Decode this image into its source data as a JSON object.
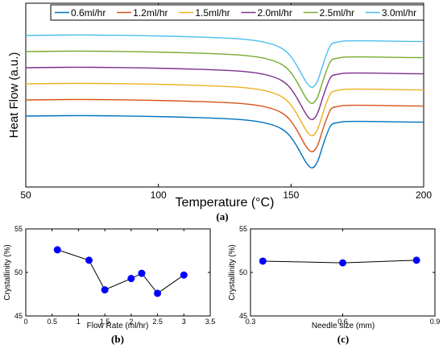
{
  "chart_data": [
    {
      "panel": "a",
      "type": "line",
      "caption": "(a)",
      "xlabel": "Temperature",
      "xlabel_unit": "(°C)",
      "ylabel": "Heat Flow (a.u.)",
      "xlim": [
        50,
        200
      ],
      "xticks": [
        50,
        100,
        150,
        200
      ],
      "yticks_shown": false,
      "grid": false,
      "legend": "top, horizontal",
      "series": [
        {
          "name": "0.6ml/hr",
          "color": "#0072BD",
          "offset": 0.0
        },
        {
          "name": "1.2ml/hr",
          "color": "#D95319",
          "offset": 1.0
        },
        {
          "name": "1.5ml/hr",
          "color": "#EDB120",
          "offset": 2.0
        },
        {
          "name": "2.0ml/hr",
          "color": "#7E2F8E",
          "offset": 3.0
        },
        {
          "name": "2.5ml/hr",
          "color": "#77AC30",
          "offset": 4.0
        },
        {
          "name": "3.0ml/hr",
          "color": "#4DBEEE",
          "offset": 5.0
        }
      ],
      "curve_shape": {
        "x": [
          50,
          60,
          70,
          80,
          90,
          100,
          110,
          120,
          130,
          135,
          140,
          145,
          148,
          150,
          152,
          154,
          156,
          158,
          160,
          162,
          164,
          165,
          166,
          168,
          170,
          180,
          190,
          200
        ],
        "y": [
          0.0,
          0.02,
          0.03,
          0.02,
          0.0,
          -0.03,
          -0.07,
          -0.12,
          -0.2,
          -0.28,
          -0.4,
          -0.65,
          -0.95,
          -1.3,
          -1.8,
          -2.4,
          -3.0,
          -3.3,
          -2.9,
          -1.8,
          -0.9,
          -0.55,
          -0.45,
          -0.4,
          -0.33,
          -0.33,
          -0.36,
          -0.38
        ]
      }
    },
    {
      "panel": "b",
      "type": "scatter",
      "caption": "(b)",
      "xlabel": "Flow Rate (ml/hr)",
      "ylabel": "Crystallinity (%)",
      "xlim": [
        0,
        3.5
      ],
      "ylim": [
        45,
        55
      ],
      "xticks": [
        0,
        0.5,
        1,
        1.5,
        2,
        2.5,
        3,
        3.5
      ],
      "xtick_labels": [
        "0",
        "0.5",
        "1",
        "1.5",
        "2",
        "2.5",
        "3",
        "3.5"
      ],
      "yticks": [
        45,
        50,
        55
      ],
      "marker_color": "#0000FF",
      "line_color": "#000000",
      "x": [
        0.6,
        1.2,
        1.5,
        2.0,
        2.2,
        2.5,
        3.0
      ],
      "y": [
        52.6,
        51.4,
        48.0,
        49.3,
        49.9,
        47.6,
        49.7
      ]
    },
    {
      "panel": "c",
      "type": "scatter",
      "caption": "(c)",
      "xlabel": "Needle size (mm)",
      "ylabel": "Crystallinity (%)",
      "xlim": [
        0.3,
        0.9
      ],
      "ylim": [
        45,
        55
      ],
      "xticks": [
        0.3,
        0.6,
        0.9
      ],
      "xtick_labels": [
        "0.3",
        "0.6",
        "0.9"
      ],
      "yticks": [
        45,
        50,
        55
      ],
      "marker_color": "#0000FF",
      "line_color": "#000000",
      "x": [
        0.34,
        0.6,
        0.84
      ],
      "y": [
        51.3,
        51.1,
        51.4
      ]
    }
  ]
}
